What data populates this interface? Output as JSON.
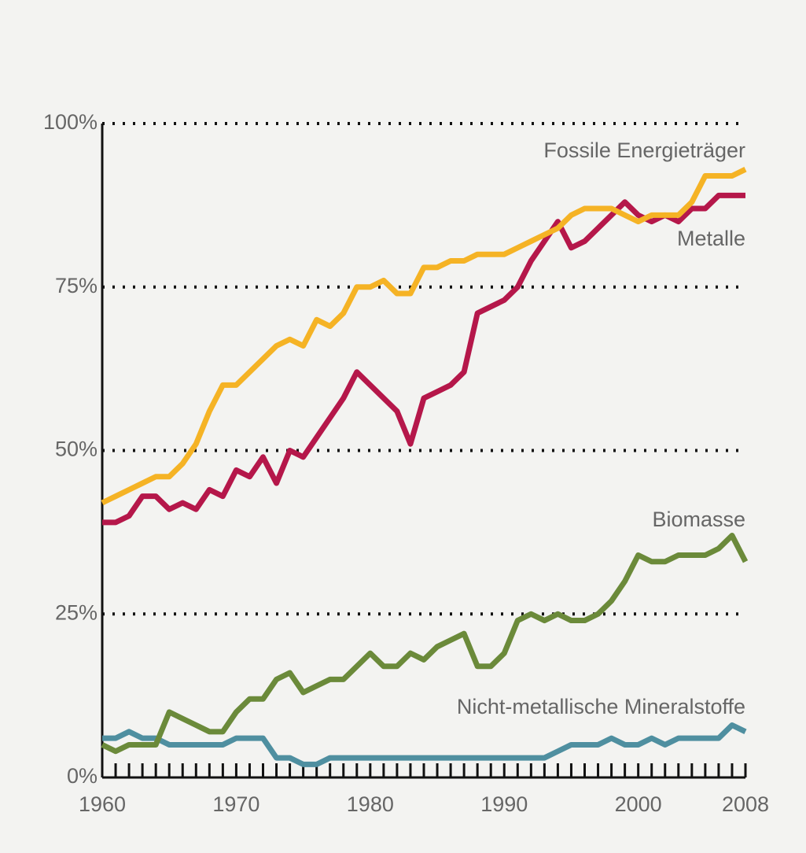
{
  "chart_data": {
    "type": "line",
    "x": [
      1960,
      1961,
      1962,
      1963,
      1964,
      1965,
      1966,
      1967,
      1968,
      1969,
      1970,
      1971,
      1972,
      1973,
      1974,
      1975,
      1976,
      1977,
      1978,
      1979,
      1980,
      1981,
      1982,
      1983,
      1984,
      1985,
      1986,
      1987,
      1988,
      1989,
      1990,
      1991,
      1992,
      1993,
      1994,
      1995,
      1996,
      1997,
      1998,
      1999,
      2000,
      2001,
      2002,
      2003,
      2004,
      2005,
      2006,
      2007,
      2008
    ],
    "series": [
      {
        "name": "Nicht-metallische Mineralstoffe",
        "color": "#4f8fa0",
        "values": [
          6,
          6,
          7,
          6,
          6,
          5,
          5,
          5,
          5,
          5,
          6,
          6,
          6,
          3,
          3,
          2,
          2,
          3,
          3,
          3,
          3,
          3,
          3,
          3,
          3,
          3,
          3,
          3,
          3,
          3,
          3,
          3,
          3,
          3,
          4,
          5,
          5,
          5,
          6,
          5,
          5,
          6,
          5,
          6,
          6,
          6,
          6,
          8,
          7
        ]
      },
      {
        "name": "Biomasse",
        "color": "#6b8a3a",
        "values": [
          5,
          4,
          5,
          5,
          5,
          10,
          9,
          8,
          7,
          7,
          10,
          12,
          12,
          15,
          16,
          13,
          14,
          15,
          15,
          17,
          19,
          17,
          17,
          19,
          18,
          20,
          21,
          22,
          17,
          17,
          19,
          24,
          25,
          24,
          25,
          24,
          24,
          25,
          27,
          30,
          34,
          33,
          33,
          34,
          34,
          34,
          35,
          37,
          33
        ]
      },
      {
        "name": "Metalle",
        "color": "#b5174a",
        "values": [
          39,
          39,
          40,
          43,
          43,
          41,
          42,
          41,
          44,
          43,
          47,
          46,
          49,
          45,
          50,
          49,
          52,
          55,
          58,
          62,
          60,
          58,
          56,
          51,
          58,
          59,
          60,
          62,
          71,
          72,
          73,
          75,
          79,
          82,
          85,
          81,
          82,
          84,
          86,
          88,
          86,
          85,
          86,
          85,
          87,
          87,
          89,
          89,
          89
        ]
      },
      {
        "name": "Fossile Energieträger",
        "color": "#f5b325",
        "values": [
          42,
          43,
          44,
          45,
          46,
          46,
          48,
          51,
          56,
          60,
          60,
          62,
          64,
          66,
          67,
          66,
          70,
          69,
          71,
          75,
          75,
          76,
          74,
          74,
          78,
          78,
          79,
          79,
          80,
          80,
          80,
          81,
          82,
          83,
          84,
          86,
          87,
          87,
          87,
          86,
          85,
          86,
          86,
          86,
          88,
          92,
          92,
          92,
          93
        ]
      }
    ],
    "xlim": [
      1960,
      2008
    ],
    "xticks": [
      1960,
      1970,
      1980,
      1990,
      2000,
      2008
    ],
    "ylim": [
      0,
      100
    ],
    "yticks": [
      {
        "value": 0,
        "label": "0%"
      },
      {
        "value": 25,
        "label": "25%"
      },
      {
        "value": 50,
        "label": "50%"
      },
      {
        "value": 75,
        "label": "75%"
      },
      {
        "value": 100,
        "label": "100%"
      }
    ],
    "grid": true
  }
}
